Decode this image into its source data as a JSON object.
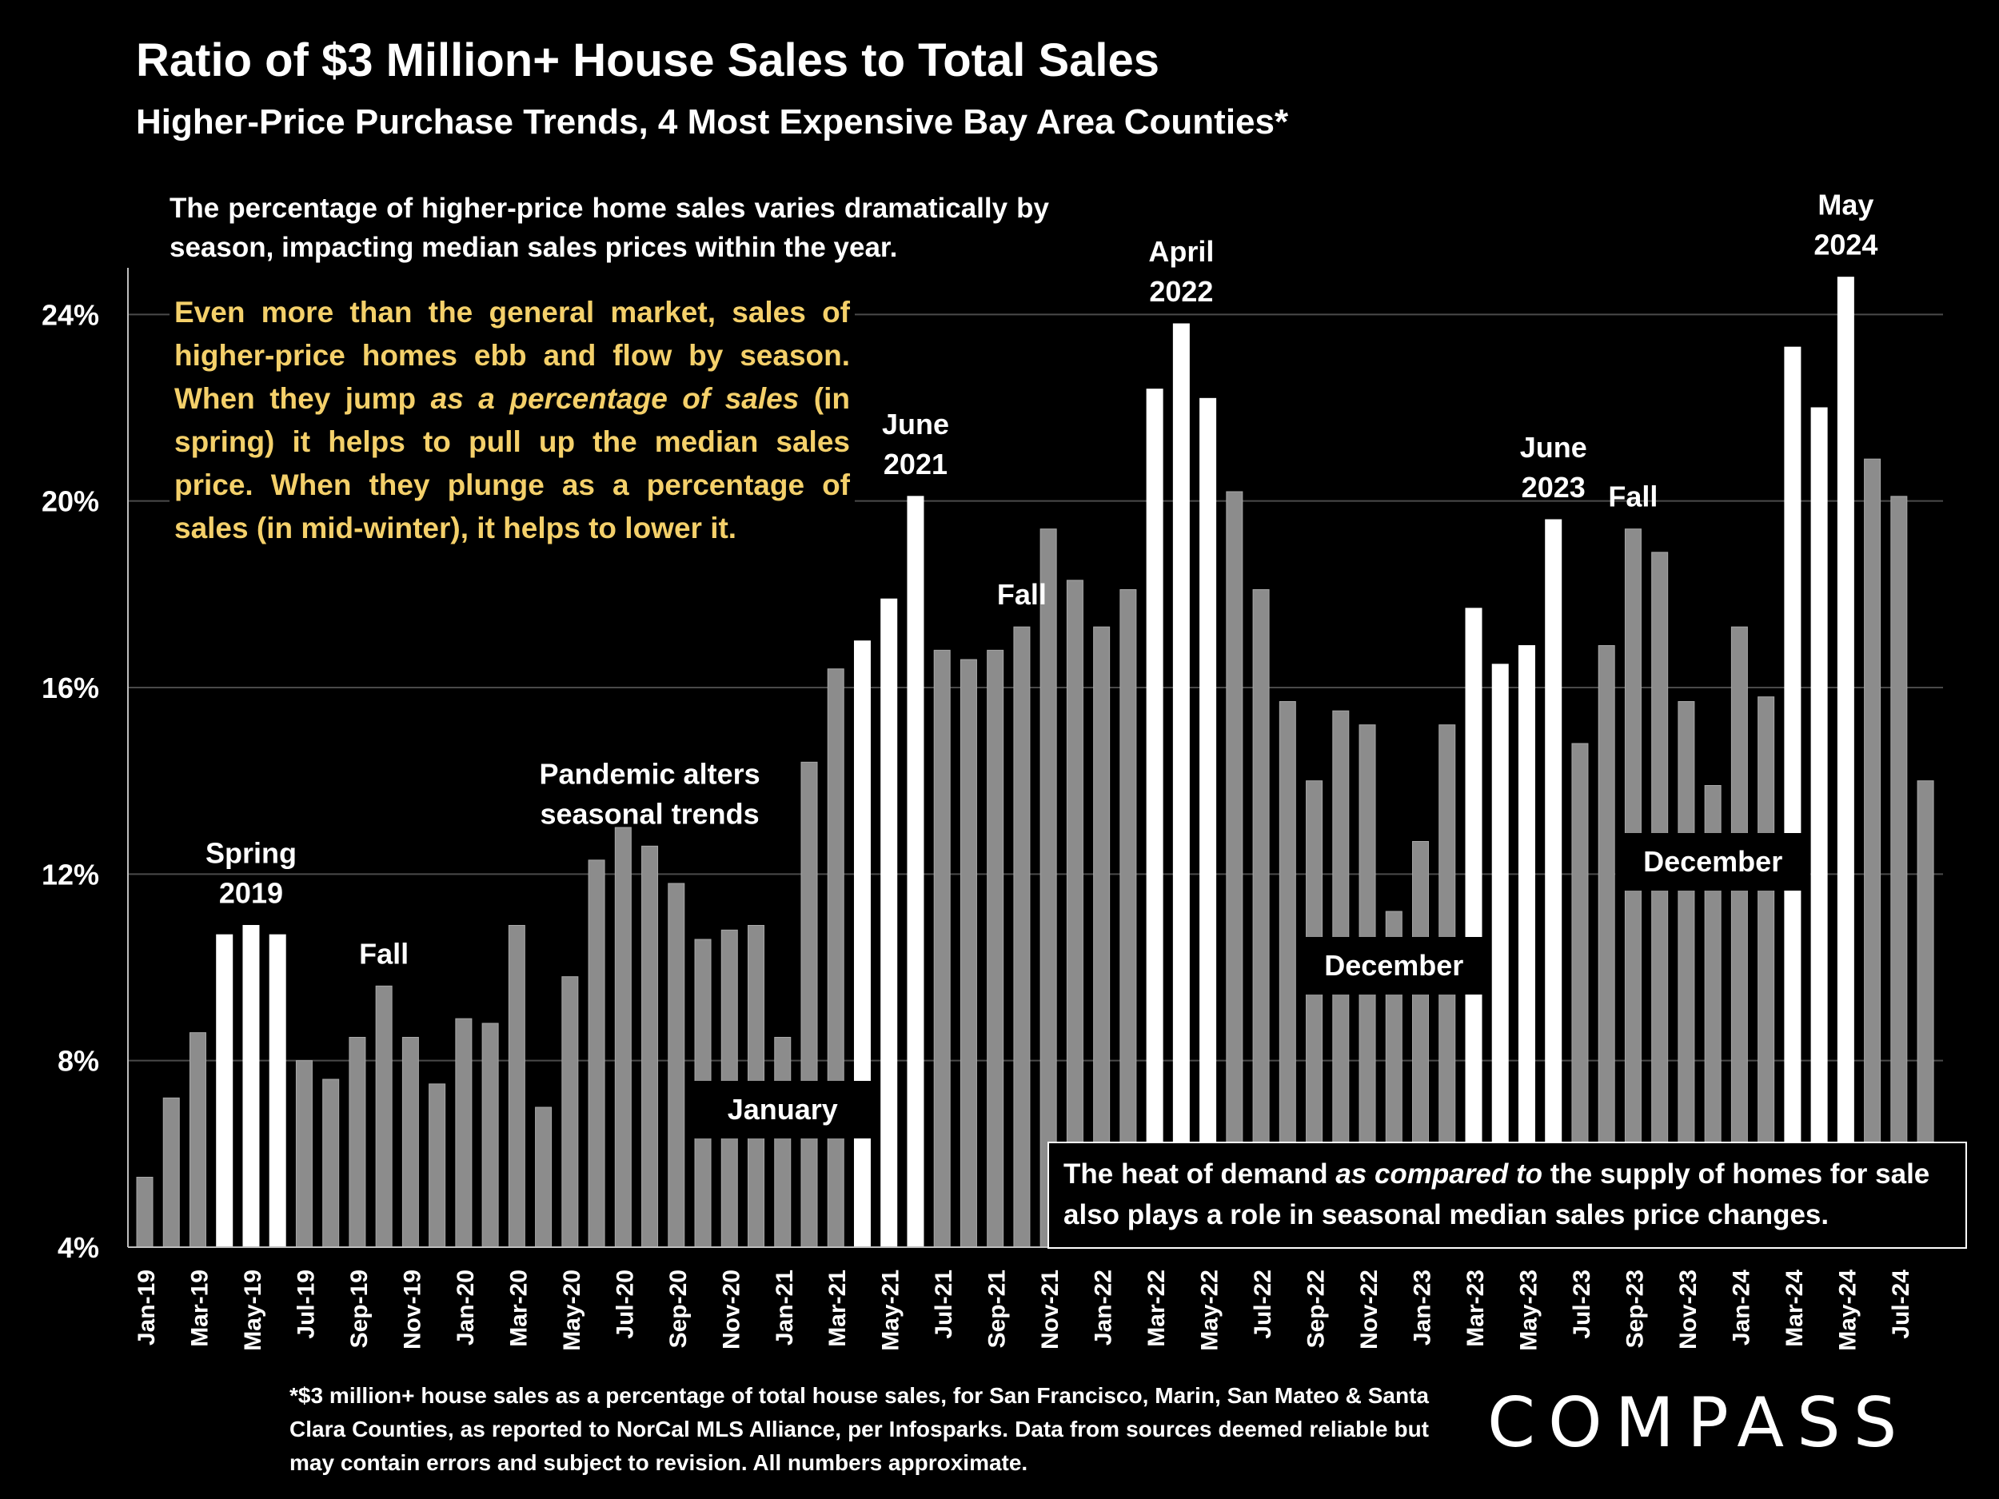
{
  "title": "Ratio of $3 Million+ House Sales to Total Sales",
  "subtitle": "Higher-Price Purchase Trends, 4 Most Expensive Bay Area Counties*",
  "intro_text": "The percentage of higher-price home sales varies dramatically by season, impacting median sales prices within the year.",
  "note": {
    "part1": "Even more than the general market, sales of higher-price homes ebb and flow by season. When they jump ",
    "emph": "as a percentage of sales",
    "part2": " (in spring) it helps to pull up the median sales price. When they plunge as a percentage of sales (in mid-winter), it helps to lower it."
  },
  "heat_note": {
    "part1": "The heat of demand ",
    "emph": "as compared to",
    "part2": " the supply of homes for sale also plays a role in seasonal median sales price changes."
  },
  "footnote": "*$3 million+ house sales as a percentage of total house sales, for San Francisco, Marin, San Mateo & Santa Clara Counties, as reported to NorCal MLS Alliance, per Infosparks. Data from sources deemed reliable but may contain errors and subject to revision. All numbers approximate.",
  "logo": "COMPASS",
  "colors": {
    "background": "#000000",
    "bar_gray": "#8c8c8c",
    "bar_highlight": "#ffffff",
    "note_yellow": "#f4d06a",
    "grid": "#4a4a4a"
  },
  "chart_data": {
    "type": "bar",
    "title": "Ratio of $3 Million+ House Sales to Total Sales",
    "ylabel": "",
    "xlabel": "",
    "ylim": [
      4,
      25
    ],
    "yticks": [
      4,
      8,
      12,
      16,
      20,
      24
    ],
    "ytick_labels": [
      "4%",
      "8%",
      "12%",
      "16%",
      "20%",
      "24%"
    ],
    "grid": true,
    "categories": [
      "Jan-19",
      "Feb-19",
      "Mar-19",
      "Apr-19",
      "May-19",
      "Jun-19",
      "Jul-19",
      "Aug-19",
      "Sep-19",
      "Oct-19",
      "Nov-19",
      "Dec-19",
      "Jan-20",
      "Feb-20",
      "Mar-20",
      "Apr-20",
      "May-20",
      "Jun-20",
      "Jul-20",
      "Aug-20",
      "Sep-20",
      "Oct-20",
      "Nov-20",
      "Dec-20",
      "Jan-21",
      "Feb-21",
      "Mar-21",
      "Apr-21",
      "May-21",
      "Jun-21",
      "Jul-21",
      "Aug-21",
      "Sep-21",
      "Oct-21",
      "Nov-21",
      "Dec-21",
      "Jan-22",
      "Feb-22",
      "Mar-22",
      "Apr-22",
      "May-22",
      "Jun-22",
      "Jul-22",
      "Aug-22",
      "Sep-22",
      "Oct-22",
      "Nov-22",
      "Dec-22",
      "Jan-23",
      "Feb-23",
      "Mar-23",
      "Apr-23",
      "May-23",
      "Jun-23",
      "Jul-23",
      "Aug-23",
      "Sep-23",
      "Oct-23",
      "Nov-23",
      "Dec-23",
      "Jan-24",
      "Feb-24",
      "Mar-24",
      "Apr-24",
      "May-24",
      "Jun-24",
      "Jul-24",
      "Aug-24"
    ],
    "tick_labels_shown": [
      "Jan-19",
      "Mar-19",
      "May-19",
      "Jul-19",
      "Sep-19",
      "Nov-19",
      "Jan-20",
      "Mar-20",
      "May-20",
      "Jul-20",
      "Sep-20",
      "Nov-20",
      "Jan-21",
      "Mar-21",
      "May-21",
      "Jul-21",
      "Sep-21",
      "Nov-21",
      "Jan-22",
      "Mar-22",
      "May-22",
      "Jul-22",
      "Sep-22",
      "Nov-22",
      "Jan-23",
      "Mar-23",
      "May-23",
      "Jul-23",
      "Sep-23",
      "Nov-23",
      "Jan-24",
      "Mar-24",
      "May-24",
      "Jul-24"
    ],
    "values": [
      5.5,
      7.2,
      8.6,
      10.7,
      10.9,
      10.7,
      8.0,
      7.6,
      8.5,
      9.6,
      8.5,
      7.5,
      8.9,
      8.8,
      10.9,
      7.0,
      9.8,
      12.3,
      13.0,
      12.6,
      11.8,
      10.6,
      10.8,
      10.9,
      8.5,
      14.4,
      16.4,
      17.0,
      17.9,
      20.1,
      16.8,
      16.6,
      16.8,
      17.3,
      19.4,
      18.3,
      17.3,
      18.1,
      22.4,
      23.8,
      22.2,
      20.2,
      18.1,
      15.7,
      14.0,
      15.5,
      15.2,
      11.2,
      12.7,
      15.2,
      17.7,
      16.5,
      16.9,
      19.6,
      14.8,
      16.9,
      19.4,
      18.9,
      15.7,
      13.9,
      17.3,
      15.8,
      23.3,
      22.0,
      24.8,
      20.9,
      20.1,
      14.0
    ],
    "highlighted": [
      "Apr-19",
      "May-19",
      "Jun-19",
      "Apr-21",
      "May-21",
      "Jun-21",
      "Mar-22",
      "Apr-22",
      "May-22",
      "Mar-23",
      "Apr-23",
      "May-23",
      "Jun-23",
      "Mar-24",
      "Apr-24",
      "May-24"
    ],
    "annotations": [
      {
        "text": "Spring 2019",
        "lines": [
          "Spring",
          "2019"
        ],
        "at": "May-19"
      },
      {
        "text": "Fall",
        "lines": [
          "Fall"
        ],
        "at": "Oct-19"
      },
      {
        "text": "Pandemic alters seasonal trends",
        "lines": [
          "Pandemic alters",
          "seasonal trends"
        ],
        "at": "Aug-20"
      },
      {
        "text": "June 2021",
        "lines": [
          "June",
          "2021"
        ],
        "at": "Jun-21"
      },
      {
        "text": "Fall",
        "lines": [
          "Fall"
        ],
        "at": "Oct-21"
      },
      {
        "text": "April 2022",
        "lines": [
          "April",
          "2022"
        ],
        "at": "Apr-22"
      },
      {
        "text": "June 2023",
        "lines": [
          "June",
          "2023"
        ],
        "at": "Jun-23"
      },
      {
        "text": "Fall",
        "lines": [
          "Fall"
        ],
        "at": "Sep-23"
      },
      {
        "text": "May 2024",
        "lines": [
          "May",
          "2024"
        ],
        "at": "May-24"
      }
    ],
    "boxed_labels": [
      {
        "text": "January",
        "at": "Jan-21"
      },
      {
        "text": "December",
        "at": "Dec-22"
      },
      {
        "text": "December",
        "at": "Dec-23"
      }
    ]
  }
}
